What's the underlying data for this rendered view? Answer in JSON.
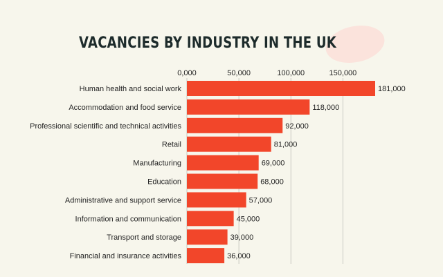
{
  "chart_data": {
    "type": "bar",
    "orientation": "horizontal",
    "title": "VACANCIES BY INDUSTRY IN THE UK",
    "xlabel": "",
    "ylabel": "",
    "xlim": [
      0,
      181000
    ],
    "ticks": [
      0,
      50000,
      100000,
      150000
    ],
    "tick_labels": [
      "0,000",
      "50,000",
      "100,000",
      "150,000"
    ],
    "grid": "vertical",
    "categories": [
      "Human health and social work",
      "Accommodation and food service",
      "Professional scientific and technical activities",
      "Retail",
      "Manufacturing",
      "Education",
      "Administrative and support service",
      "Information and communication",
      "Transport and storage",
      "Financial and insurance activities"
    ],
    "values": [
      181000,
      118000,
      92000,
      81000,
      69000,
      68000,
      57000,
      45000,
      39000,
      36000
    ],
    "value_labels": [
      "181,000",
      "118,000",
      "92,000",
      "81,000",
      "69,000",
      "68,000",
      "57,000",
      "45,000",
      "39,000",
      "36,000"
    ]
  },
  "colors": {
    "bar": "#f2462a",
    "grid": "#c9c9c2",
    "background": "#f7f6ec",
    "title": "#1d2b2b",
    "accent_blob": "#fbe3dc"
  }
}
